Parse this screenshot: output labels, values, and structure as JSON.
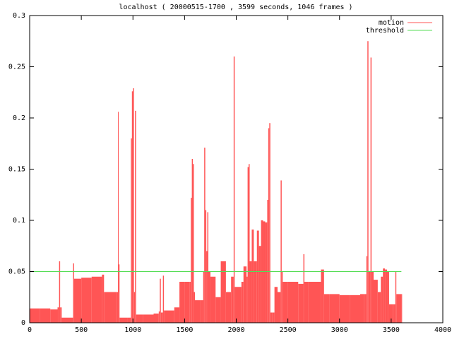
{
  "chart_data": {
    "type": "impulse",
    "title": "localhost ( 20000515-1700 , 3599 seconds, 1046 frames )",
    "xlim": [
      0,
      4000
    ],
    "xticks": [
      0,
      500,
      1000,
      1500,
      2000,
      2500,
      3000,
      3500,
      4000
    ],
    "ylim": [
      0,
      0.3
    ],
    "yticks": [
      0,
      0.05,
      0.1,
      0.15,
      0.2,
      0.25,
      0.3
    ],
    "grid": false,
    "legend": "top-right",
    "series": [
      {
        "name": "motion",
        "color": "#ff5555",
        "x": [
          0,
          100,
          200,
          270,
          285,
          295,
          310,
          400,
          420,
          430,
          500,
          600,
          700,
          720,
          800,
          840,
          855,
          860,
          870,
          950,
          980,
          990,
          1000,
          1010,
          1020,
          1030,
          1100,
          1200,
          1250,
          1260,
          1270,
          1290,
          1300,
          1400,
          1450,
          1500,
          1550,
          1560,
          1570,
          1580,
          1590,
          1600,
          1660,
          1680,
          1690,
          1700,
          1710,
          1720,
          1730,
          1750,
          1800,
          1850,
          1900,
          1950,
          1975,
          1985,
          2000,
          2050,
          2070,
          2100,
          2110,
          2120,
          2130,
          2150,
          2170,
          2200,
          2220,
          2240,
          2260,
          2280,
          2300,
          2310,
          2320,
          2330,
          2350,
          2370,
          2400,
          2430,
          2440,
          2450,
          2500,
          2600,
          2650,
          2660,
          2700,
          2800,
          2820,
          2850,
          2900,
          3000,
          3100,
          3200,
          3240,
          3260,
          3270,
          3280,
          3300,
          3310,
          3330,
          3370,
          3400,
          3420,
          3440,
          3460,
          3480,
          3520,
          3540,
          3550,
          3599
        ],
        "values": [
          0.014,
          0.014,
          0.013,
          0.015,
          0.06,
          0.015,
          0.005,
          0.005,
          0.058,
          0.043,
          0.044,
          0.045,
          0.047,
          0.03,
          0.03,
          0.03,
          0.206,
          0.057,
          0.005,
          0.005,
          0.18,
          0.226,
          0.229,
          0.03,
          0.207,
          0.008,
          0.008,
          0.009,
          0.011,
          0.043,
          0.01,
          0.046,
          0.012,
          0.015,
          0.04,
          0.04,
          0.04,
          0.122,
          0.16,
          0.155,
          0.03,
          0.022,
          0.022,
          0.05,
          0.171,
          0.11,
          0.07,
          0.108,
          0.05,
          0.045,
          0.025,
          0.06,
          0.03,
          0.045,
          0.26,
          0.035,
          0.035,
          0.04,
          0.055,
          0.045,
          0.152,
          0.155,
          0.06,
          0.091,
          0.06,
          0.09,
          0.075,
          0.1,
          0.099,
          0.098,
          0.12,
          0.19,
          0.195,
          0.01,
          0.01,
          0.035,
          0.03,
          0.139,
          0.05,
          0.04,
          0.04,
          0.038,
          0.067,
          0.04,
          0.04,
          0.04,
          0.052,
          0.028,
          0.028,
          0.027,
          0.027,
          0.028,
          0.028,
          0.065,
          0.275,
          0.05,
          0.259,
          0.05,
          0.042,
          0.03,
          0.045,
          0.053,
          0.052,
          0.05,
          0.018,
          0.018,
          0.05,
          0.028,
          0.028
        ]
      },
      {
        "name": "threshold",
        "color": "#55dd55",
        "x": [
          0,
          3599
        ],
        "values": [
          0.05,
          0.05
        ]
      }
    ]
  }
}
